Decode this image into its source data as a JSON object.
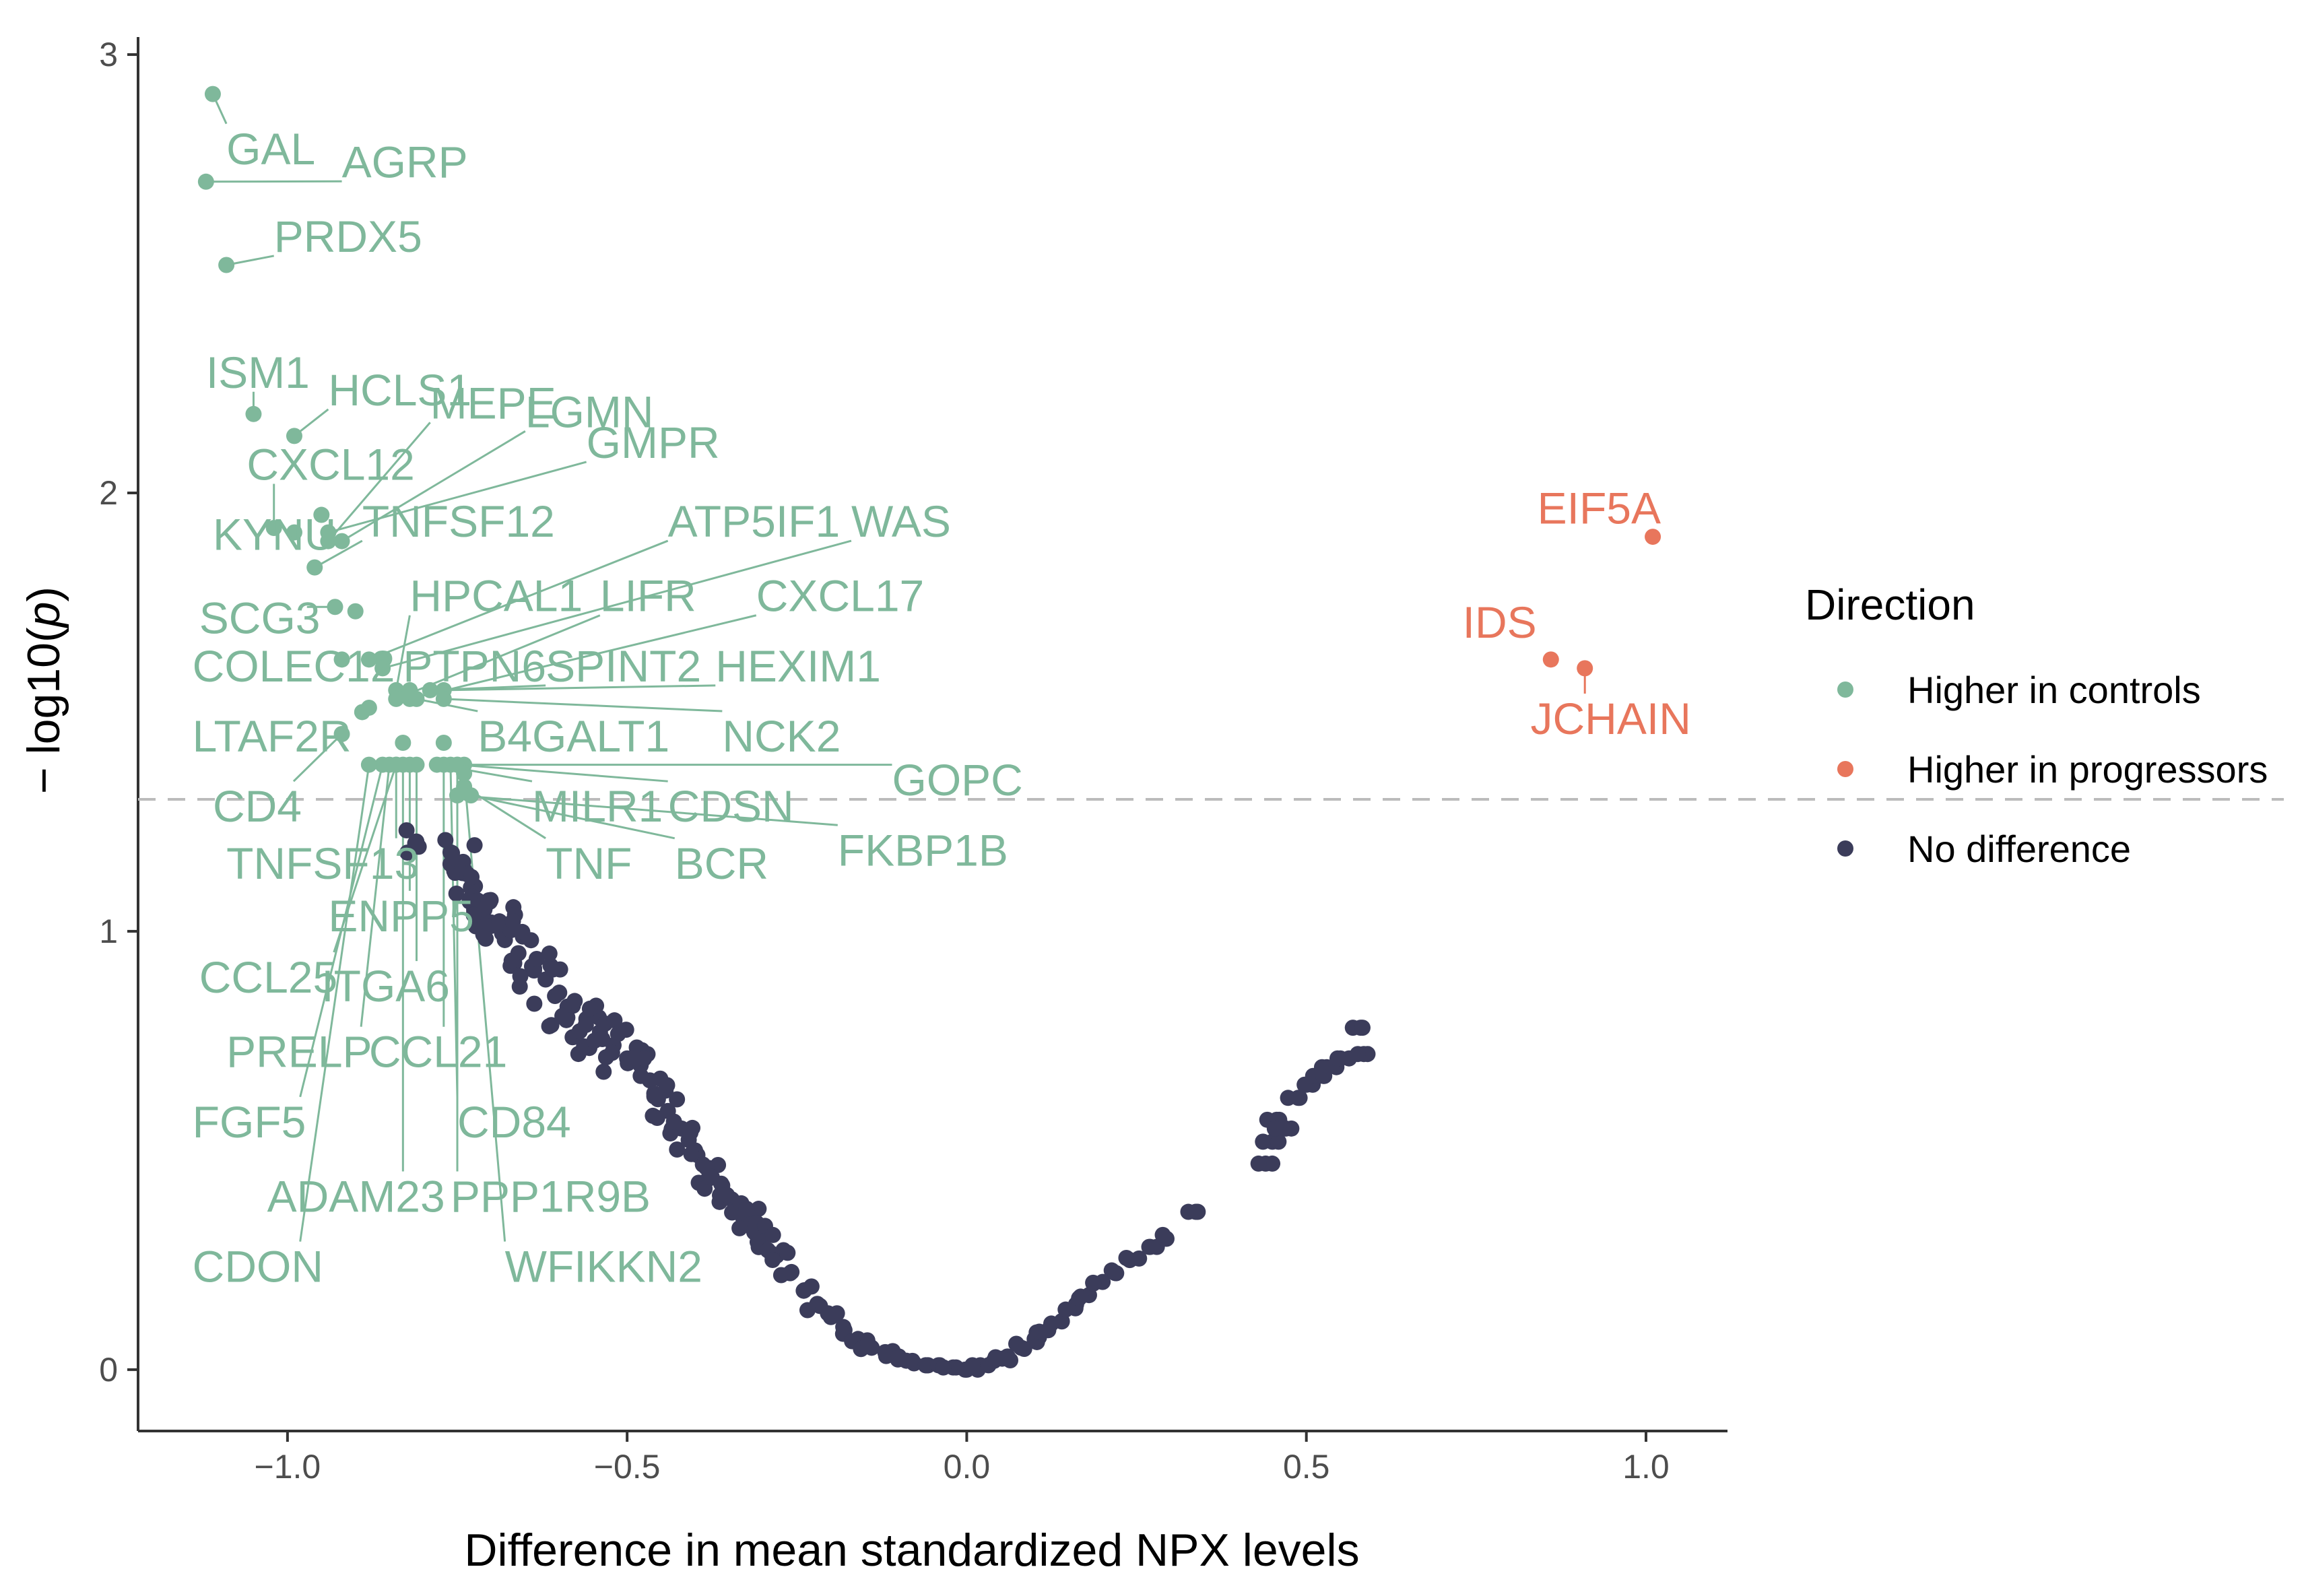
{
  "chart_data": {
    "type": "scatter",
    "title": "",
    "xlabel": "Difference in mean standardized NPX levels",
    "ylabel": "− log10(p)",
    "ylabel_main": "− log10(",
    "ylabel_italic": "p",
    "ylabel_close": ")",
    "xlim": [
      -1.22,
      1.12
    ],
    "ylim": [
      -0.14,
      3.04
    ],
    "x_ticks": [
      -1.0,
      -0.5,
      0.0,
      0.5,
      1.0
    ],
    "x_tick_labels": [
      "−1.0",
      "−0.5",
      "0.0",
      "0.5",
      "1.0"
    ],
    "y_ticks": [
      0,
      1,
      2,
      3
    ],
    "y_tick_labels": [
      "0",
      "1",
      "2",
      "3"
    ],
    "threshold": 1.301,
    "grid": false,
    "colors": {
      "Higher in controls": "#7fb89b",
      "Higher in progressors": "#e8765c",
      "No difference": "#3b3c5a",
      "threshold_line": "#bbbbbb",
      "axis": "#333333"
    },
    "legend": {
      "title": "Direction",
      "position": "right",
      "entries": [
        "Higher in controls",
        "Higher in progressors",
        "No difference"
      ]
    },
    "labeled_points": [
      {
        "label": "GAL",
        "x": -1.11,
        "y": 2.91,
        "dir": "Higher in controls",
        "lx": -1.09,
        "ly": 2.75
      },
      {
        "label": "AGRP",
        "x": -1.12,
        "y": 2.71,
        "dir": "Higher in controls",
        "lx": -0.92,
        "ly": 2.72
      },
      {
        "label": "PRDX5",
        "x": -1.09,
        "y": 2.52,
        "dir": "Higher in controls",
        "lx": -1.02,
        "ly": 2.55
      },
      {
        "label": "MEPE",
        "x": -0.94,
        "y": 1.89,
        "dir": "Higher in controls",
        "lx": -0.79,
        "ly": 2.17
      },
      {
        "label": "GMPR",
        "x": -0.94,
        "y": 1.91,
        "dir": "Higher in controls",
        "lx": -0.56,
        "ly": 2.08
      },
      {
        "label": "ISM1",
        "x": -1.05,
        "y": 2.18,
        "dir": "Higher in controls",
        "lx": -1.12,
        "ly": 2.24
      },
      {
        "label": "HCLS1",
        "x": -0.99,
        "y": 2.13,
        "dir": "Higher in controls",
        "lx": -0.94,
        "ly": 2.2
      },
      {
        "label": "LGMN",
        "x": -0.92,
        "y": 1.89,
        "dir": "Higher in controls",
        "lx": -0.65,
        "ly": 2.15
      },
      {
        "label": "CXCL12",
        "x": -1.02,
        "y": 1.92,
        "dir": "Higher in controls",
        "lx": -1.06,
        "ly": 2.03
      },
      {
        "label": "TNFSF12",
        "x": -0.96,
        "y": 1.83,
        "dir": "Higher in controls",
        "lx": -0.89,
        "ly": 1.9
      },
      {
        "label": "ATP5IF1",
        "x": -0.88,
        "y": 1.62,
        "dir": "Higher in controls",
        "lx": -0.44,
        "ly": 1.9
      },
      {
        "label": "WAS",
        "x": -0.86,
        "y": 1.6,
        "dir": "Higher in controls",
        "lx": -0.17,
        "ly": 1.9
      },
      {
        "label": "KYNU",
        "x": -0.99,
        "y": 1.91,
        "dir": "Higher in controls",
        "lx": -1.11,
        "ly": 1.87
      },
      {
        "label": "HPCAL1",
        "x": -0.84,
        "y": 1.55,
        "dir": "Higher in controls",
        "lx": -0.82,
        "ly": 1.73
      },
      {
        "label": "LIFR",
        "x": -0.84,
        "y": 1.53,
        "dir": "Higher in controls",
        "lx": -0.54,
        "ly": 1.73
      },
      {
        "label": "CXCL17",
        "x": -0.82,
        "y": 1.53,
        "dir": "Higher in controls",
        "lx": -0.31,
        "ly": 1.73
      },
      {
        "label": "SCG3",
        "x": -0.93,
        "y": 1.74,
        "dir": "Higher in controls",
        "lx": -1.13,
        "ly": 1.68
      },
      {
        "label": "COLEC12",
        "x": -0.92,
        "y": 1.62,
        "dir": "Higher in controls",
        "lx": -1.14,
        "ly": 1.57
      },
      {
        "label": "PTPN6",
        "x": -0.82,
        "y": 1.55,
        "dir": "Higher in controls",
        "lx": -0.83,
        "ly": 1.57
      },
      {
        "label": "SPINT2",
        "x": -0.79,
        "y": 1.55,
        "dir": "Higher in controls",
        "lx": -0.62,
        "ly": 1.57
      },
      {
        "label": "HEXIM1",
        "x": -0.77,
        "y": 1.55,
        "dir": "Higher in controls",
        "lx": -0.37,
        "ly": 1.57
      },
      {
        "label": "LTAF2R",
        "x": -0.88,
        "y": 1.51,
        "dir": "Higher in controls",
        "lx": -1.14,
        "ly": 1.41
      },
      {
        "label": "B4GALT1",
        "x": -0.81,
        "y": 1.53,
        "dir": "Higher in controls",
        "lx": -0.72,
        "ly": 1.41
      },
      {
        "label": "NCK2",
        "x": -0.77,
        "y": 1.53,
        "dir": "Higher in controls",
        "lx": -0.36,
        "ly": 1.41
      },
      {
        "label": "CD4",
        "x": -0.92,
        "y": 1.45,
        "dir": "Higher in controls",
        "lx": -1.11,
        "ly": 1.25
      },
      {
        "label": "MILR1",
        "x": -0.78,
        "y": 1.38,
        "dir": "Higher in controls",
        "lx": -0.64,
        "ly": 1.25
      },
      {
        "label": "CDSN",
        "x": -0.75,
        "y": 1.38,
        "dir": "Higher in controls",
        "lx": -0.44,
        "ly": 1.25
      },
      {
        "label": "GOPC",
        "x": -0.74,
        "y": 1.38,
        "dir": "Higher in controls",
        "lx": -0.11,
        "ly": 1.31
      },
      {
        "label": "TNFSF13",
        "x": -0.84,
        "y": 1.38,
        "dir": "Higher in controls",
        "lx": -1.09,
        "ly": 1.12
      },
      {
        "label": "TNF",
        "x": -0.74,
        "y": 1.33,
        "dir": "Higher in controls",
        "lx": -0.62,
        "ly": 1.12
      },
      {
        "label": "BCR",
        "x": -0.73,
        "y": 1.31,
        "dir": "Higher in controls",
        "lx": -0.43,
        "ly": 1.12
      },
      {
        "label": "FKBP1B",
        "x": -0.75,
        "y": 1.31,
        "dir": "Higher in controls",
        "lx": -0.19,
        "ly": 1.15
      },
      {
        "label": "ENPP5",
        "x": -0.82,
        "y": 1.38,
        "dir": "Higher in controls",
        "lx": -0.94,
        "ly": 1.0
      },
      {
        "label": "CCL25",
        "x": -0.84,
        "y": 1.38,
        "dir": "Higher in controls",
        "lx": -1.13,
        "ly": 0.86
      },
      {
        "label": "ITGA6",
        "x": -0.81,
        "y": 1.38,
        "dir": "Higher in controls",
        "lx": -0.95,
        "ly": 0.84
      },
      {
        "label": "PRELP",
        "x": -0.85,
        "y": 1.38,
        "dir": "Higher in controls",
        "lx": -1.09,
        "ly": 0.69
      },
      {
        "label": "CCL21",
        "x": -0.77,
        "y": 1.38,
        "dir": "Higher in controls",
        "lx": -0.88,
        "ly": 0.69
      },
      {
        "label": "FGF5",
        "x": -0.86,
        "y": 1.38,
        "dir": "Higher in controls",
        "lx": -1.14,
        "ly": 0.53
      },
      {
        "label": "CD84",
        "x": -0.76,
        "y": 1.38,
        "dir": "Higher in controls",
        "lx": -0.75,
        "ly": 0.53
      },
      {
        "label": "ADAM23",
        "x": -0.83,
        "y": 1.38,
        "dir": "Higher in controls",
        "lx": -1.03,
        "ly": 0.36
      },
      {
        "label": "PPP1R9B",
        "x": -0.75,
        "y": 1.38,
        "dir": "Higher in controls",
        "lx": -0.76,
        "ly": 0.36
      },
      {
        "label": "CDON",
        "x": -0.88,
        "y": 1.38,
        "dir": "Higher in controls",
        "lx": -1.14,
        "ly": 0.2
      },
      {
        "label": "WFIKKN2",
        "x": -0.74,
        "y": 1.36,
        "dir": "Higher in controls",
        "lx": -0.68,
        "ly": 0.2
      },
      {
        "label": "EIF5A",
        "x": 1.01,
        "y": 1.9,
        "dir": "Higher in progressors",
        "lx": 0.84,
        "ly": 1.93
      },
      {
        "label": "IDS",
        "x": 0.86,
        "y": 1.62,
        "dir": "Higher in progressors",
        "lx": 0.73,
        "ly": 1.67
      },
      {
        "label": "JCHAIN",
        "x": 0.91,
        "y": 1.6,
        "dir": "Higher in progressors",
        "lx": 0.83,
        "ly": 1.45
      }
    ],
    "unlabeled_points": [
      {
        "x": -0.95,
        "y": 1.95,
        "dir": "Higher in controls"
      },
      {
        "x": -0.9,
        "y": 1.73,
        "dir": "Higher in controls"
      },
      {
        "x": -0.89,
        "y": 1.5,
        "dir": "Higher in controls"
      },
      {
        "x": -0.86,
        "y": 1.62,
        "dir": "Higher in controls"
      },
      {
        "x": -0.83,
        "y": 1.43,
        "dir": "Higher in controls"
      },
      {
        "x": -0.77,
        "y": 1.43,
        "dir": "Higher in controls"
      }
    ],
    "no_difference_curve": {
      "dir": "No difference",
      "x": [
        -0.81,
        -0.76,
        -0.74,
        -0.73,
        -0.72,
        -0.71,
        -0.7,
        -0.68,
        -0.66,
        -0.64,
        -0.62,
        -0.6,
        -0.58,
        -0.56,
        -0.54,
        -0.52,
        -0.5,
        -0.48,
        -0.46,
        -0.44,
        -0.42,
        -0.4,
        -0.38,
        -0.36,
        -0.34,
        -0.32,
        -0.3,
        -0.28,
        -0.26,
        -0.24,
        -0.22,
        -0.2,
        -0.18,
        -0.16,
        -0.14,
        -0.12,
        -0.1,
        -0.08,
        -0.06,
        -0.04,
        -0.02,
        0.0,
        0.02,
        0.04,
        0.06,
        0.08,
        0.1,
        0.12,
        0.14,
        0.16,
        0.18,
        0.2,
        0.22,
        0.24,
        0.27,
        0.29,
        0.34,
        0.44,
        0.45,
        0.46,
        0.47,
        0.49,
        0.5,
        0.51,
        0.53,
        0.55,
        0.58,
        0.59
      ],
      "y": [
        1.2,
        1.18,
        1.14,
        1.1,
        1.07,
        1.05,
        1.02,
        0.98,
        0.95,
        0.92,
        0.89,
        0.86,
        0.83,
        0.8,
        0.77,
        0.74,
        0.71,
        0.67,
        0.63,
        0.59,
        0.55,
        0.5,
        0.46,
        0.42,
        0.38,
        0.34,
        0.3,
        0.26,
        0.22,
        0.18,
        0.15,
        0.12,
        0.09,
        0.07,
        0.05,
        0.04,
        0.03,
        0.02,
        0.01,
        0.01,
        0.005,
        0.0,
        0.01,
        0.02,
        0.03,
        0.05,
        0.07,
        0.09,
        0.11,
        0.14,
        0.17,
        0.2,
        0.22,
        0.25,
        0.28,
        0.3,
        0.36,
        0.47,
        0.52,
        0.57,
        0.55,
        0.62,
        0.65,
        0.67,
        0.69,
        0.71,
        0.78,
        0.72
      ],
      "spread": [
        0.04,
        0.05,
        0.06,
        0.06,
        0.07,
        0.07,
        0.07,
        0.08,
        0.08,
        0.08,
        0.08,
        0.08,
        0.08,
        0.08,
        0.07,
        0.07,
        0.07,
        0.06,
        0.06,
        0.06,
        0.05,
        0.05,
        0.05,
        0.04,
        0.04,
        0.03,
        0.03,
        0.03,
        0.02,
        0.02,
        0.02,
        0.01,
        0.01,
        0.01,
        0.01,
        0.01,
        0.01,
        0.01,
        0.0,
        0.0,
        0.0,
        0.0,
        0.0,
        0.01,
        0.01,
        0.01,
        0.01,
        0.01,
        0.01,
        0.01,
        0.01,
        0.01,
        0.01,
        0.01,
        0.0,
        0.01,
        0.0,
        0.0,
        0.0,
        0.0,
        0.0,
        0.0,
        0.0,
        0.0,
        0.0,
        0.0,
        0.0,
        0.0
      ]
    }
  }
}
